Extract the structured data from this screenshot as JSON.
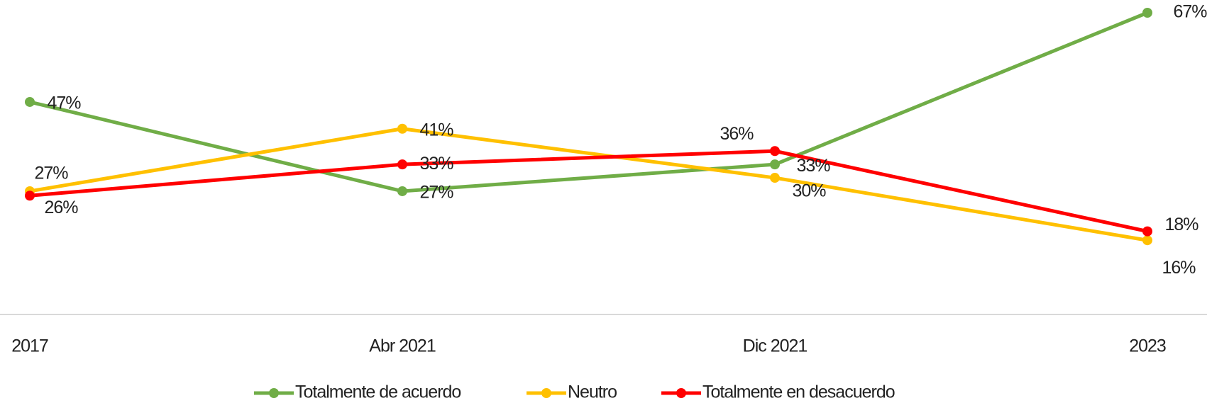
{
  "chart_data": {
    "type": "line",
    "categories": [
      "2017",
      "Abr 2021",
      "Dic 2021",
      "2023"
    ],
    "series": [
      {
        "name": "Totalmente de acuerdo",
        "color": "#70ad47",
        "values": [
          47,
          27,
          33,
          67
        ],
        "value_labels": [
          "47%",
          "27%",
          "33%",
          "67%"
        ]
      },
      {
        "name": "Neutro",
        "color": "#ffc000",
        "values": [
          27,
          41,
          30,
          16
        ],
        "value_labels": [
          "27%",
          "41%",
          "30%",
          "16%"
        ]
      },
      {
        "name": "Totalmente en desacuerdo",
        "color": "#ff0000",
        "values": [
          26,
          33,
          36,
          18
        ],
        "value_labels": [
          "26%",
          "33%",
          "36%",
          "18%"
        ]
      }
    ],
    "legend": "bottom"
  }
}
